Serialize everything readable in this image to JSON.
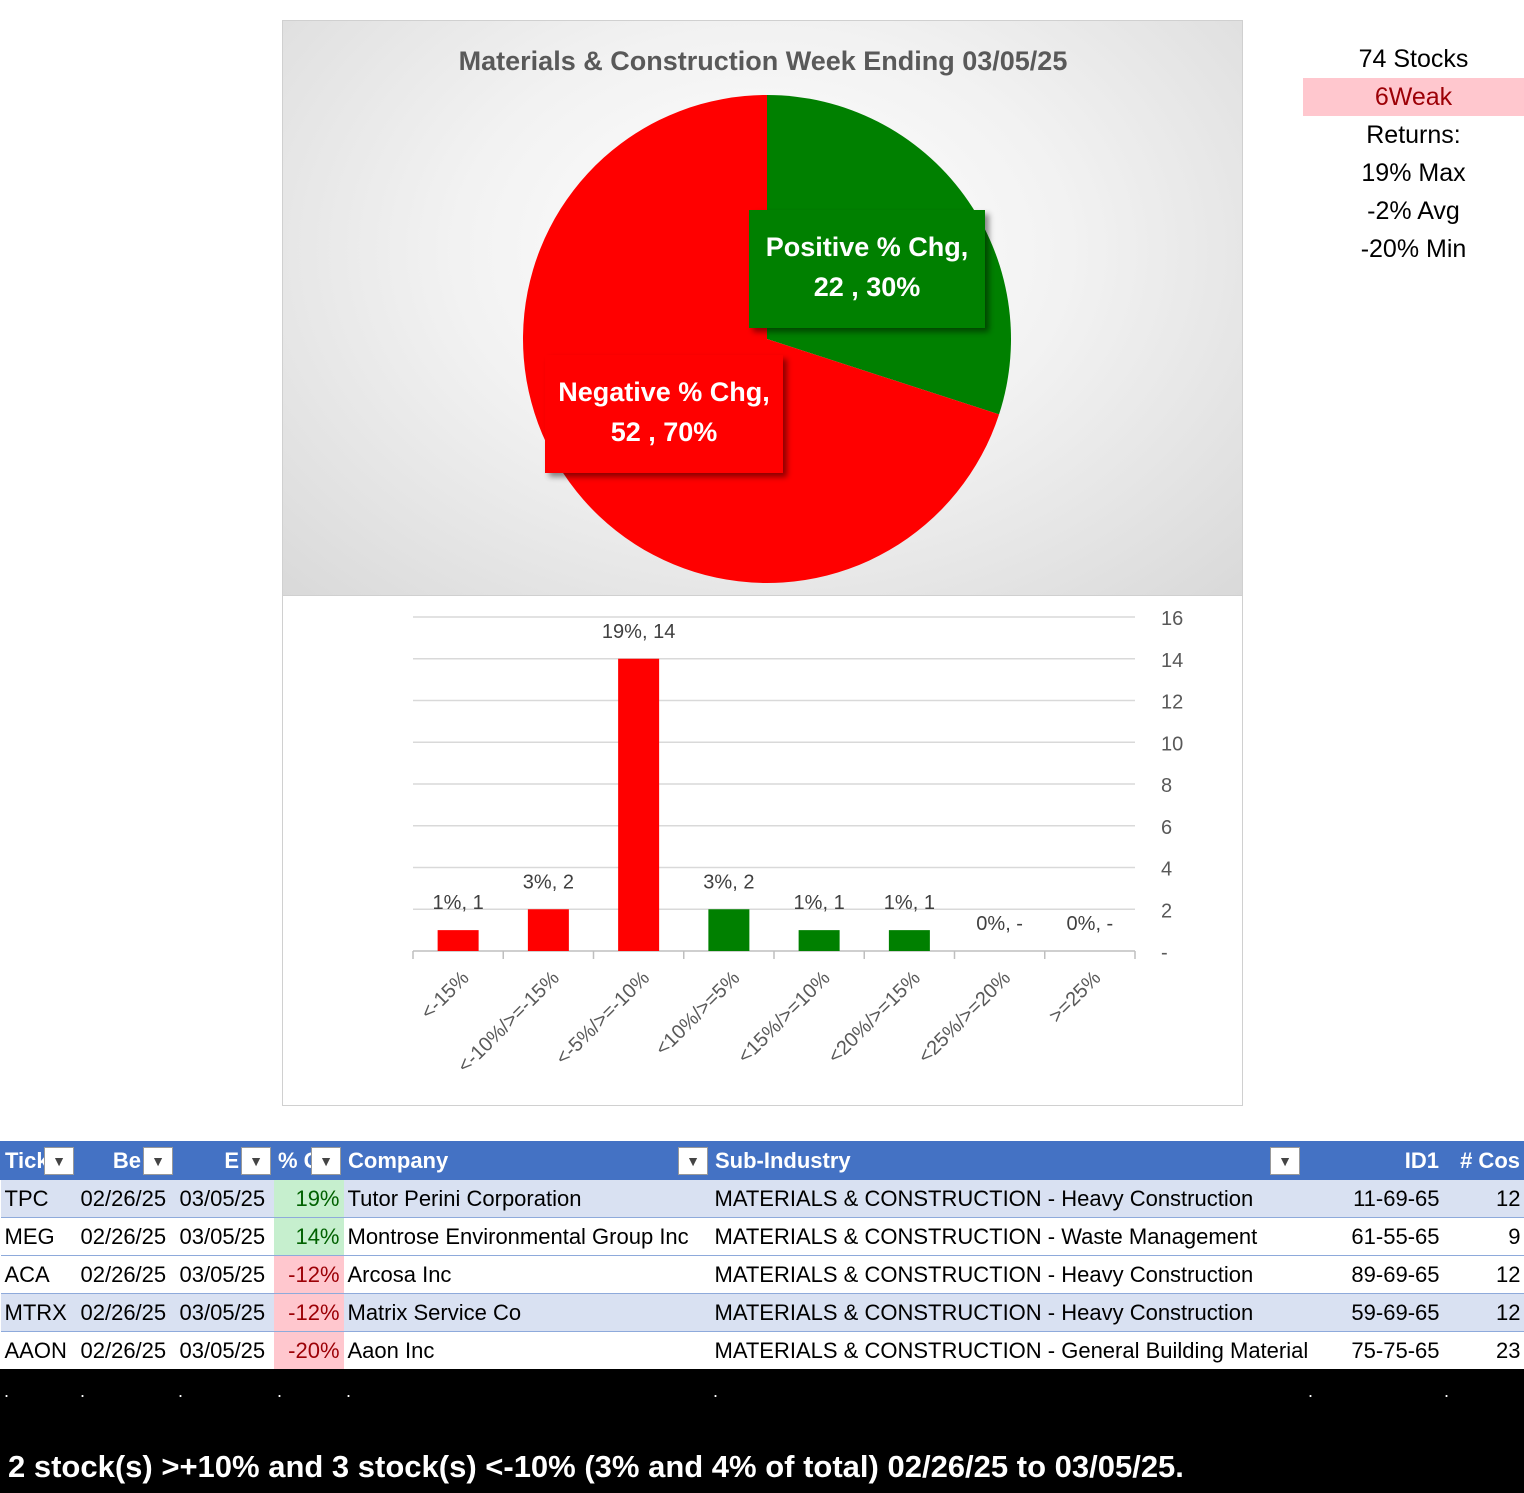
{
  "pie": {
    "title": "Materials & Construction Week Ending 03/05/25",
    "slices": [
      {
        "name": "Positive % Chg",
        "count": 22,
        "pct": "30%",
        "value": 30,
        "color": "#008000",
        "label_line1": "Positive % Chg,",
        "label_line2": "22 , 30%"
      },
      {
        "name": "Negative % Chg",
        "count": 52,
        "pct": "70%",
        "value": 70,
        "color": "#ff0000",
        "label_line1": "Negative % Chg,",
        "label_line2": "52 , 70%"
      }
    ]
  },
  "chart_data": {
    "type": "bar",
    "categories": [
      "<-15%",
      "<-10%/>=-15%",
      "<-5%/>=-10%",
      "<10%/>=5%",
      "<15%/>=10%",
      "<20%/>=15%",
      "<25%/>=20%",
      ">=25%"
    ],
    "values": [
      1,
      2,
      14,
      2,
      1,
      1,
      0,
      0
    ],
    "data_labels": [
      "1%,  1",
      "3%,  2",
      "19%,  14",
      "3%,  2",
      "1%,  1",
      "1%,  1",
      "0%,  -",
      "0%,  -"
    ],
    "colors": [
      "#ff0000",
      "#ff0000",
      "#ff0000",
      "#008000",
      "#008000",
      "#008000",
      "#008000",
      "#008000"
    ],
    "ylim": [
      0,
      16
    ],
    "yticks": [
      "-",
      "2",
      "4",
      "6",
      "8",
      "10",
      "12",
      "14",
      "16"
    ],
    "y_axis_side": "right",
    "grid": true
  },
  "stats": {
    "stocks": "74 Stocks",
    "strength": "6Weak",
    "returns_label": "Returns:",
    "max": "19% Max",
    "avg": "-2% Avg",
    "min": "-20% Min"
  },
  "table": {
    "headers": [
      "Tick",
      "Be",
      "E",
      "% C",
      "Company",
      "Sub-Industry",
      "ID1",
      "# Cos"
    ],
    "rows": [
      [
        "TPC",
        "02/26/25",
        "03/05/25",
        "19%",
        "Tutor Perini Corporation",
        "MATERIALS & CONSTRUCTION - Heavy Construction",
        "11-69-65",
        "12"
      ],
      [
        "MEG",
        "02/26/25",
        "03/05/25",
        "14%",
        "Montrose Environmental Group Inc",
        "MATERIALS & CONSTRUCTION - Waste Management",
        "61-55-65",
        "9"
      ],
      [
        "ACA",
        "02/26/25",
        "03/05/25",
        "-12%",
        "Arcosa Inc",
        "MATERIALS & CONSTRUCTION - Heavy Construction",
        "89-69-65",
        "12"
      ],
      [
        "MTRX",
        "02/26/25",
        "03/05/25",
        "-12%",
        "Matrix Service Co",
        "MATERIALS & CONSTRUCTION - Heavy Construction",
        "59-69-65",
        "12"
      ],
      [
        "AAON",
        "02/26/25",
        "03/05/25",
        "-20%",
        "Aaon Inc",
        "MATERIALS & CONSTRUCTION - General Building Materials",
        "75-75-65",
        "23"
      ]
    ]
  },
  "footer": {
    "dot": ".",
    "summary": "2 stock(s) >+10% and 3 stock(s) <-10% (3% and 4% of total) 02/26/25 to 03/05/25."
  }
}
